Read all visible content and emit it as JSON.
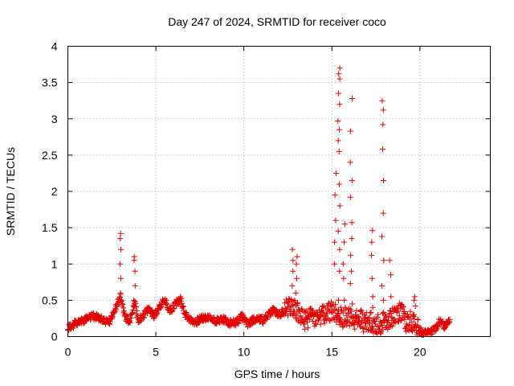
{
  "chart_data": {
    "type": "scatter",
    "title": "Day 247 of 2024, SRMTID for receiver coco",
    "xlabel": "GPS time / hours",
    "ylabel": "SRMTID / TECUs",
    "xlim": [
      0,
      24
    ],
    "ylim": [
      0,
      4
    ],
    "x_ticks": [
      0,
      5,
      10,
      15,
      20
    ],
    "x_tick_labels": [
      "0",
      "5",
      "10",
      "15",
      "20"
    ],
    "y_ticks": [
      0,
      0.5,
      1,
      1.5,
      2,
      2.5,
      3,
      3.5,
      4
    ],
    "y_tick_labels": [
      "0",
      "0.5",
      "1",
      "1.5",
      "2",
      "2.5",
      "3",
      "3.5",
      "4"
    ],
    "grid": true,
    "marker": "plus",
    "series_color": "#e00000",
    "baseline": [
      [
        0,
        0.13
      ],
      [
        0.3,
        0.16
      ],
      [
        0.6,
        0.2
      ],
      [
        0.9,
        0.23
      ],
      [
        1.2,
        0.26
      ],
      [
        1.5,
        0.28
      ],
      [
        1.8,
        0.25
      ],
      [
        2.1,
        0.22
      ],
      [
        2.4,
        0.2
      ],
      [
        2.6,
        0.35
      ],
      [
        2.8,
        0.45
      ],
      [
        3.0,
        0.55
      ],
      [
        3.2,
        0.3
      ],
      [
        3.5,
        0.2
      ],
      [
        3.8,
        0.45
      ],
      [
        4.0,
        0.22
      ],
      [
        4.3,
        0.3
      ],
      [
        4.6,
        0.38
      ],
      [
        4.9,
        0.28
      ],
      [
        5.2,
        0.42
      ],
      [
        5.5,
        0.5
      ],
      [
        5.8,
        0.35
      ],
      [
        6.1,
        0.45
      ],
      [
        6.4,
        0.5
      ],
      [
        6.7,
        0.3
      ],
      [
        7.0,
        0.22
      ],
      [
        7.3,
        0.2
      ],
      [
        7.6,
        0.25
      ],
      [
        8.0,
        0.26
      ],
      [
        8.4,
        0.22
      ],
      [
        8.8,
        0.24
      ],
      [
        9.2,
        0.18
      ],
      [
        9.6,
        0.2
      ],
      [
        9.9,
        0.28
      ],
      [
        10.2,
        0.18
      ],
      [
        10.5,
        0.22
      ],
      [
        10.8,
        0.26
      ],
      [
        11.1,
        0.22
      ],
      [
        11.4,
        0.3
      ],
      [
        11.7,
        0.36
      ],
      [
        12.0,
        0.3
      ],
      [
        12.3,
        0.35
      ],
      [
        12.6,
        0.45
      ],
      [
        12.9,
        0.4
      ],
      [
        13.2,
        0.3
      ],
      [
        13.5,
        0.2
      ],
      [
        13.8,
        0.3
      ],
      [
        14.1,
        0.25
      ],
      [
        14.4,
        0.28
      ],
      [
        14.7,
        0.3
      ],
      [
        15.0,
        0.35
      ],
      [
        15.3,
        0.3
      ],
      [
        15.6,
        0.25
      ],
      [
        15.9,
        0.28
      ],
      [
        16.2,
        0.22
      ],
      [
        16.5,
        0.25
      ],
      [
        16.8,
        0.2
      ],
      [
        17.1,
        0.22
      ],
      [
        17.4,
        0.18
      ],
      [
        17.7,
        0.17
      ],
      [
        18.0,
        0.2
      ],
      [
        18.3,
        0.25
      ],
      [
        18.6,
        0.3
      ],
      [
        18.9,
        0.35
      ],
      [
        19.2,
        0.2
      ],
      [
        19.5,
        0.22
      ],
      [
        19.8,
        0.12
      ],
      [
        20.1,
        0.06
      ],
      [
        20.4,
        0.05
      ],
      [
        20.8,
        0.08
      ],
      [
        21.1,
        0.2
      ],
      [
        21.4,
        0.15
      ],
      [
        21.7,
        0.25
      ]
    ],
    "spikes": [
      {
        "x": 3.0,
        "values": [
          0.6,
          0.8,
          1.0,
          1.2,
          1.35,
          1.42
        ]
      },
      {
        "x": 3.8,
        "values": [
          0.5,
          0.7,
          0.9,
          1.05,
          1.1
        ]
      },
      {
        "x": 12.8,
        "values": [
          0.7,
          0.9,
          1.05,
          1.2
        ]
      },
      {
        "x": 13.0,
        "values": [
          0.6,
          0.8,
          1.0,
          1.1
        ]
      },
      {
        "x": 15.2,
        "values": [
          1.0,
          1.3,
          1.6,
          1.95,
          2.25
        ]
      },
      {
        "x": 15.4,
        "values": [
          0.5,
          0.9,
          1.2,
          1.45,
          1.8,
          2.1,
          2.55,
          2.7,
          2.85,
          2.97,
          3.2,
          3.35,
          3.55,
          3.62,
          3.7
        ]
      },
      {
        "x": 15.7,
        "values": [
          0.5,
          0.8,
          1.0,
          1.3,
          1.55
        ]
      },
      {
        "x": 16.1,
        "values": [
          0.45,
          0.73,
          0.9,
          1.12,
          1.35,
          1.57,
          1.92,
          2.15,
          2.4,
          2.83,
          3.28
        ]
      },
      {
        "x": 17.3,
        "values": [
          0.4,
          0.55,
          0.8,
          1.12,
          1.3,
          1.46
        ]
      },
      {
        "x": 17.9,
        "values": [
          0.5,
          0.7,
          1.05,
          1.38,
          1.7,
          2.15,
          2.58,
          2.92,
          3.12,
          3.25
        ]
      },
      {
        "x": 18.3,
        "values": [
          0.35,
          0.55,
          0.85,
          1.05
        ]
      },
      {
        "x": 19.7,
        "values": [
          0.3,
          0.42,
          0.5,
          0.55
        ]
      }
    ]
  }
}
